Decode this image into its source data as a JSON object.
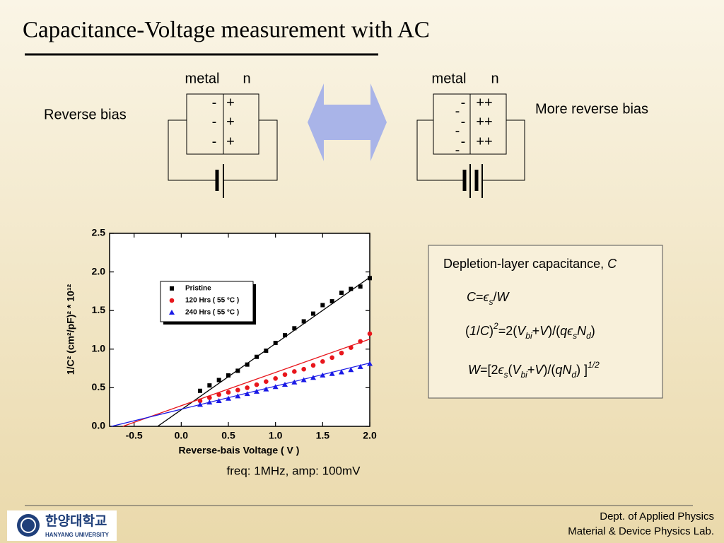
{
  "title": "Capacitance-Voltage measurement with AC",
  "diagrams": [
    {
      "metal": "metal",
      "n": "n",
      "label": "Reverse bias",
      "minus": [
        "-",
        "-",
        "-"
      ],
      "plus": [
        "+",
        "+",
        "+"
      ]
    },
    {
      "metal": "metal",
      "n": "n",
      "label": "More reverse bias",
      "minus": [
        "-",
        "-",
        "-",
        "-",
        "-",
        "-"
      ],
      "plus": [
        "++",
        "++",
        "++"
      ]
    }
  ],
  "formulas": {
    "heading": [
      {
        "text": "Depletion-layer capacitance, ",
        "style": "n"
      },
      {
        "text": "C",
        "style": "i"
      }
    ],
    "lines": [
      [
        {
          "text": "C",
          "style": "i"
        },
        {
          "text": "=",
          "style": "n"
        },
        {
          "text": "ϵ",
          "style": "i"
        },
        {
          "text": "s",
          "style": "sub"
        },
        {
          "text": "/",
          "style": "n"
        },
        {
          "text": "W",
          "style": "i"
        }
      ],
      [
        {
          "text": "(",
          "style": "n"
        },
        {
          "text": "1",
          "style": "i"
        },
        {
          "text": "/",
          "style": "n"
        },
        {
          "text": "C",
          "style": "i"
        },
        {
          "text": ")",
          "style": "n"
        },
        {
          "text": "2",
          "style": "sup"
        },
        {
          "text": "=2(",
          "style": "n"
        },
        {
          "text": "V",
          "style": "i"
        },
        {
          "text": "bi",
          "style": "sub"
        },
        {
          "text": "+",
          "style": "n"
        },
        {
          "text": "V",
          "style": "i"
        },
        {
          "text": ")/(",
          "style": "n"
        },
        {
          "text": "qϵ",
          "style": "i"
        },
        {
          "text": "s",
          "style": "sub"
        },
        {
          "text": "N",
          "style": "i"
        },
        {
          "text": "d",
          "style": "sub"
        },
        {
          "text": ")",
          "style": "n"
        }
      ],
      [
        {
          "text": "W",
          "style": "i"
        },
        {
          "text": "=[2",
          "style": "n"
        },
        {
          "text": "ϵ",
          "style": "i"
        },
        {
          "text": "s",
          "style": "sub"
        },
        {
          "text": "(",
          "style": "n"
        },
        {
          "text": "V",
          "style": "i"
        },
        {
          "text": "bi",
          "style": "sub"
        },
        {
          "text": "+",
          "style": "n"
        },
        {
          "text": "V",
          "style": "i"
        },
        {
          "text": ")/(",
          "style": "n"
        },
        {
          "text": "qN",
          "style": "i"
        },
        {
          "text": "d",
          "style": "sub"
        },
        {
          "text": ") ]",
          "style": "n"
        },
        {
          "text": "1/2",
          "style": "sup"
        }
      ]
    ]
  },
  "chart_data": {
    "type": "scatter",
    "xlabel": "Reverse-bais Voltage ( V )",
    "ylabel": "1/C² (cm²/pF)² * 10¹²",
    "caption": "freq: 1MHz, amp: 100mV",
    "xlim": [
      -0.76,
      2.0
    ],
    "ylim": [
      0,
      2.5
    ],
    "xticks": [
      -0.5,
      {
        "value": 0,
        "label": "0.0"
      },
      0.5,
      {
        "value": 1,
        "label": "1.0"
      },
      1.5,
      {
        "value": 2,
        "label": "2.0"
      }
    ],
    "yticks": [
      {
        "value": 0,
        "label": "0.0"
      },
      0.5,
      {
        "value": 1,
        "label": "1.0"
      },
      1.5,
      {
        "value": 2,
        "label": "2.0"
      },
      2.5
    ],
    "legend": "upper left",
    "x": [
      0.2,
      0.3,
      0.4,
      0.5,
      0.6,
      0.7,
      0.8,
      0.9,
      1.0,
      1.1,
      1.2,
      1.3,
      1.4,
      1.5,
      1.6,
      1.7,
      1.8,
      1.9,
      2.0
    ],
    "series": [
      {
        "name": "Pristine",
        "color": "#000000",
        "marker": "square",
        "values": [
          0.46,
          0.53,
          0.6,
          0.66,
          0.72,
          0.8,
          0.9,
          0.98,
          1.08,
          1.18,
          1.27,
          1.36,
          1.46,
          1.57,
          1.62,
          1.73,
          1.78,
          1.81,
          1.92
        ]
      },
      {
        "name": "120 Hrs ( 55 °C )",
        "color": "#e8161c",
        "marker": "circle",
        "values": [
          0.33,
          0.37,
          0.41,
          0.44,
          0.47,
          0.5,
          0.54,
          0.58,
          0.62,
          0.67,
          0.71,
          0.74,
          0.79,
          0.84,
          0.89,
          0.95,
          1.02,
          1.1,
          1.2
        ]
      },
      {
        "name": "240 Hrs ( 55 °C )",
        "color": "#1a1ae6",
        "marker": "triangle",
        "values": [
          0.28,
          0.31,
          0.33,
          0.36,
          0.39,
          0.42,
          0.45,
          0.48,
          0.51,
          0.54,
          0.57,
          0.6,
          0.63,
          0.66,
          0.68,
          0.7,
          0.73,
          0.77,
          0.81
        ]
      }
    ],
    "fit_lines": [
      {
        "color": "#000000",
        "x": [
          -0.25,
          2.0
        ],
        "values": [
          0,
          1.93
        ]
      },
      {
        "color": "#e8161c",
        "x": [
          -0.62,
          2.0
        ],
        "values": [
          0,
          1.13
        ]
      },
      {
        "color": "#1a1ae6",
        "x": [
          -0.74,
          2.0
        ],
        "values": [
          0,
          0.82
        ]
      }
    ]
  },
  "footer": {
    "logo": "한양대학교",
    "logo_sub": "HANYANG UNIVERSITY",
    "lines": [
      "Dept. of Applied Physics",
      "Material & Device Physics Lab."
    ]
  }
}
